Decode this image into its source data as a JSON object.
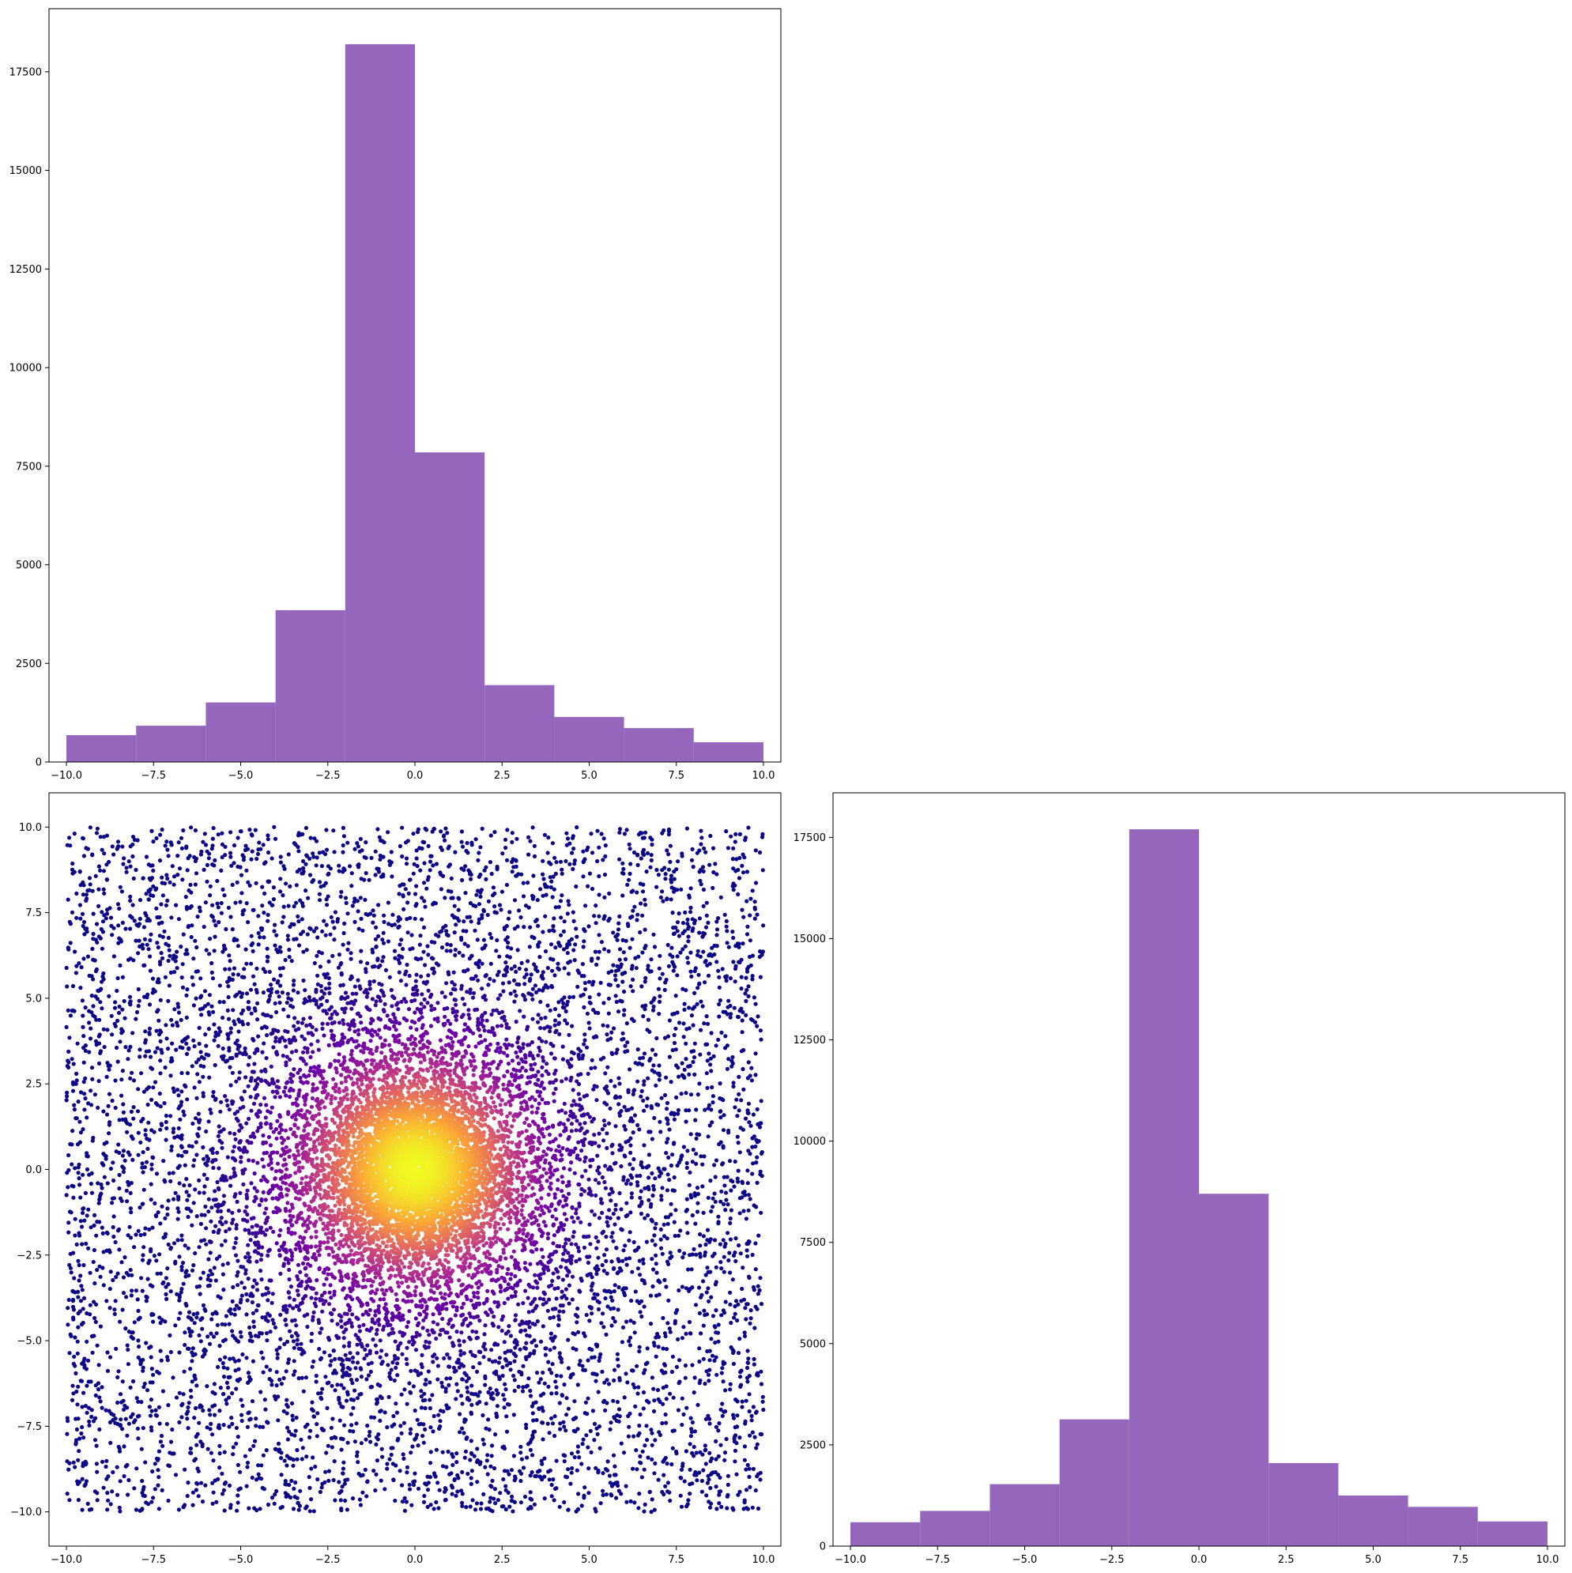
{
  "theme": {
    "bar_color": "#9467bd",
    "axis_color": "#000000",
    "scatter_colormap": "plasma",
    "colormap_stops": [
      "#0d0887",
      "#6a00a8",
      "#b12a90",
      "#e16462",
      "#fca636",
      "#f0f921"
    ]
  },
  "chart_data": [
    {
      "id": "top-histogram",
      "type": "bar",
      "title": "",
      "xlabel": "",
      "ylabel": "",
      "bin_edges": [
        -10,
        -8,
        -6,
        -4,
        -2,
        0,
        2,
        4,
        6,
        8,
        10
      ],
      "values": [
        680,
        920,
        1510,
        3850,
        18200,
        7850,
        1950,
        1140,
        860,
        500
      ],
      "xlim": [
        -10.5,
        10.5
      ],
      "ylim": [
        0,
        19100
      ],
      "xticks": [
        -10,
        -7.5,
        -5,
        -2.5,
        0,
        2.5,
        5,
        7.5,
        10
      ],
      "xtick_labels": [
        "−10.0",
        "−7.5",
        "−5.0",
        "−2.5",
        "0.0",
        "2.5",
        "5.0",
        "7.5",
        "10.0"
      ],
      "yticks": [
        0,
        2500,
        5000,
        7500,
        10000,
        12500,
        15000,
        17500
      ],
      "ytick_labels": [
        "0",
        "2500",
        "5000",
        "7500",
        "10000",
        "12500",
        "15000",
        "17500"
      ],
      "grid": false
    },
    {
      "id": "scatter",
      "type": "scatter",
      "title": "",
      "xlabel": "",
      "ylabel": "",
      "description_of_points": "about 10000 points spread uniformly over [-10, 10] x [-10, 10], densest near (0, 0), colored by local density with the plasma colormap",
      "x_range": [
        -10,
        10
      ],
      "y_range": [
        -10,
        10
      ],
      "density_center": [
        0,
        0
      ],
      "xlim": [
        -10.5,
        10.5
      ],
      "ylim": [
        -11.0,
        11.0
      ],
      "xticks": [
        -10,
        -7.5,
        -5,
        -2.5,
        0,
        2.5,
        5,
        7.5,
        10
      ],
      "xtick_labels": [
        "−10.0",
        "−7.5",
        "−5.0",
        "−2.5",
        "0.0",
        "2.5",
        "5.0",
        "7.5",
        "10.0"
      ],
      "yticks": [
        -10,
        -7.5,
        -5,
        -2.5,
        0,
        2.5,
        5,
        7.5,
        10
      ],
      "ytick_labels": [
        "−10.0",
        "−7.5",
        "−5.0",
        "−2.5",
        "0.0",
        "2.5",
        "5.0",
        "7.5",
        "10.0"
      ],
      "grid": false
    },
    {
      "id": "right-histogram",
      "type": "bar",
      "title": "",
      "xlabel": "",
      "ylabel": "",
      "bin_edges": [
        -10,
        -8,
        -6,
        -4,
        -2,
        0,
        2,
        4,
        6,
        8,
        10
      ],
      "values": [
        590,
        870,
        1530,
        3130,
        17700,
        8700,
        2050,
        1250,
        970,
        610
      ],
      "xlim": [
        -10.5,
        10.5
      ],
      "ylim": [
        0,
        18600
      ],
      "xticks": [
        -10,
        -7.5,
        -5,
        -2.5,
        0,
        2.5,
        5,
        7.5,
        10
      ],
      "xtick_labels": [
        "−10.0",
        "−7.5",
        "−5.0",
        "−2.5",
        "0.0",
        "2.5",
        "5.0",
        "7.5",
        "10.0"
      ],
      "yticks": [
        0,
        2500,
        5000,
        7500,
        10000,
        12500,
        15000,
        17500
      ],
      "ytick_labels": [
        "0",
        "2500",
        "5000",
        "7500",
        "10000",
        "12500",
        "15000",
        "17500"
      ],
      "grid": false
    }
  ]
}
